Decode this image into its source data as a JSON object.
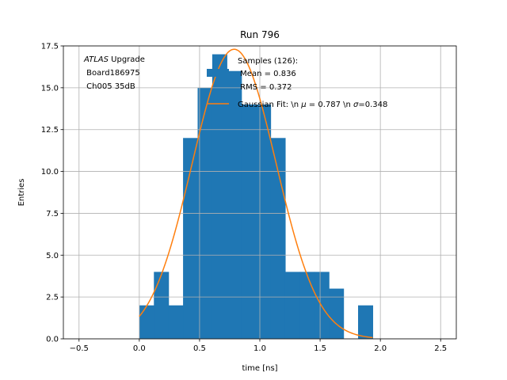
{
  "chart_data": {
    "type": "bar",
    "title": "Run 796",
    "xlabel": "time [ns]",
    "ylabel": "Entries",
    "xlim": [
      -0.63,
      2.63
    ],
    "ylim": [
      0,
      17.5
    ],
    "grid": true,
    "xticks": [
      -0.5,
      0.0,
      0.5,
      1.0,
      1.5,
      2.0,
      2.5
    ],
    "xtick_labels": [
      "−0.5",
      "0.0",
      "0.5",
      "1.0",
      "1.5",
      "2.0",
      "2.5"
    ],
    "yticks": [
      0.0,
      2.5,
      5.0,
      7.5,
      10.0,
      12.5,
      15.0,
      17.5
    ],
    "ytick_labels": [
      "0.0",
      "2.5",
      "5.0",
      "7.5",
      "10.0",
      "12.5",
      "15.0",
      "17.5"
    ],
    "bin_edges": [
      0.0,
      0.121,
      0.242,
      0.363,
      0.484,
      0.605,
      0.726,
      0.847,
      0.968,
      1.089,
      1.21,
      1.331,
      1.452,
      1.573,
      1.694,
      1.815,
      1.936
    ],
    "counts": [
      2,
      4,
      2,
      12,
      15,
      17,
      16,
      14,
      14,
      12,
      4,
      4,
      4,
      3,
      0,
      2
    ],
    "bar_color": "#1f77b4",
    "fit": {
      "type": "gaussian",
      "amplitude": 17.3,
      "mu": 0.787,
      "sigma": 0.348,
      "x_range": [
        0.0,
        1.936
      ],
      "color": "#ff7f0e"
    },
    "legend": {
      "placement": "upper-center",
      "entries": [
        {
          "label_lines": [
            "Samples (126):",
            " Mean = 0.836",
            " RMS = 0.372"
          ]
        },
        {
          "label_lines": [
            "Gaussian Fit: \\n $\\mu$ = 0.787 \\n $\\sigma$=0.348"
          ]
        }
      ]
    },
    "annotation": {
      "lines": [
        "ATLAS Upgrade",
        " Board186975",
        " Ch005 35dB"
      ]
    }
  },
  "labels": {
    "ann_italic": "ATLAS",
    "ann_rest": " Upgrade",
    "ann_line2": " Board186975",
    "ann_line3": " Ch005 35dB",
    "legend_samples_1": "Samples (126):",
    "legend_samples_2": " Mean = 0.836",
    "legend_samples_3": " RMS = 0.372",
    "legend_fit_a": "Gaussian Fit: \\n ",
    "legend_fit_mu": "μ",
    "legend_fit_b": " = 0.787 \\n ",
    "legend_fit_sigma": "σ",
    "legend_fit_c": "=0.348"
  }
}
